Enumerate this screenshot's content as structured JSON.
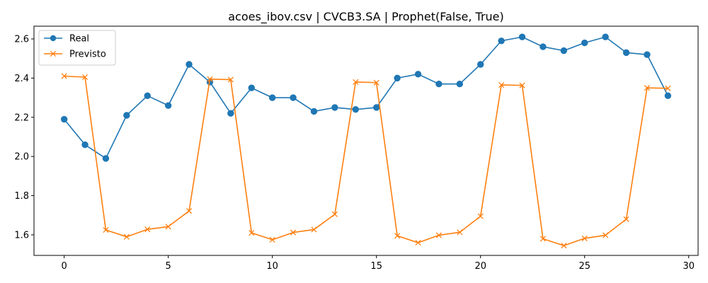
{
  "chart_data": {
    "type": "line",
    "title": "acoes_ibov.csv | CVCB3.SA | Prophet(False, True)",
    "xlabel": "",
    "ylabel": "",
    "xlim": [
      -1.45,
      30.45
    ],
    "ylim": [
      1.495,
      2.665
    ],
    "xticks": [
      0,
      5,
      10,
      15,
      20,
      25,
      30
    ],
    "yticks": [
      1.6,
      1.8,
      2.0,
      2.2,
      2.4,
      2.6
    ],
    "xtick_labels": [
      "0",
      "5",
      "10",
      "15",
      "20",
      "25",
      "30"
    ],
    "ytick_labels": [
      "1.6",
      "1.8",
      "2.0",
      "2.2",
      "2.4",
      "2.6"
    ],
    "grid": false,
    "legend_position": "top-left",
    "x": [
      0,
      1,
      2,
      3,
      4,
      5,
      6,
      7,
      8,
      9,
      10,
      11,
      12,
      13,
      14,
      15,
      16,
      17,
      18,
      19,
      20,
      21,
      22,
      23,
      24,
      25,
      26,
      27,
      28,
      29
    ],
    "series": [
      {
        "name": "Real",
        "color": "#1f77b4",
        "marker": "circle",
        "values": [
          2.19,
          2.06,
          1.99,
          2.21,
          2.31,
          2.26,
          2.47,
          2.38,
          2.22,
          2.35,
          2.3,
          2.3,
          2.23,
          2.25,
          2.24,
          2.25,
          2.4,
          2.42,
          2.37,
          2.37,
          2.47,
          2.59,
          2.61,
          2.56,
          2.54,
          2.58,
          2.61,
          2.53,
          2.52,
          2.31
        ]
      },
      {
        "name": "Previsto",
        "color": "#ff7f0e",
        "marker": "x",
        "values": [
          2.41,
          2.405,
          1.625,
          1.59,
          1.628,
          1.642,
          1.722,
          2.395,
          2.392,
          1.61,
          1.575,
          1.612,
          1.627,
          1.705,
          2.38,
          2.377,
          1.595,
          1.56,
          1.598,
          1.613,
          1.695,
          2.365,
          2.363,
          1.58,
          1.545,
          1.582,
          1.598,
          1.68,
          2.35,
          2.348
        ]
      }
    ]
  }
}
